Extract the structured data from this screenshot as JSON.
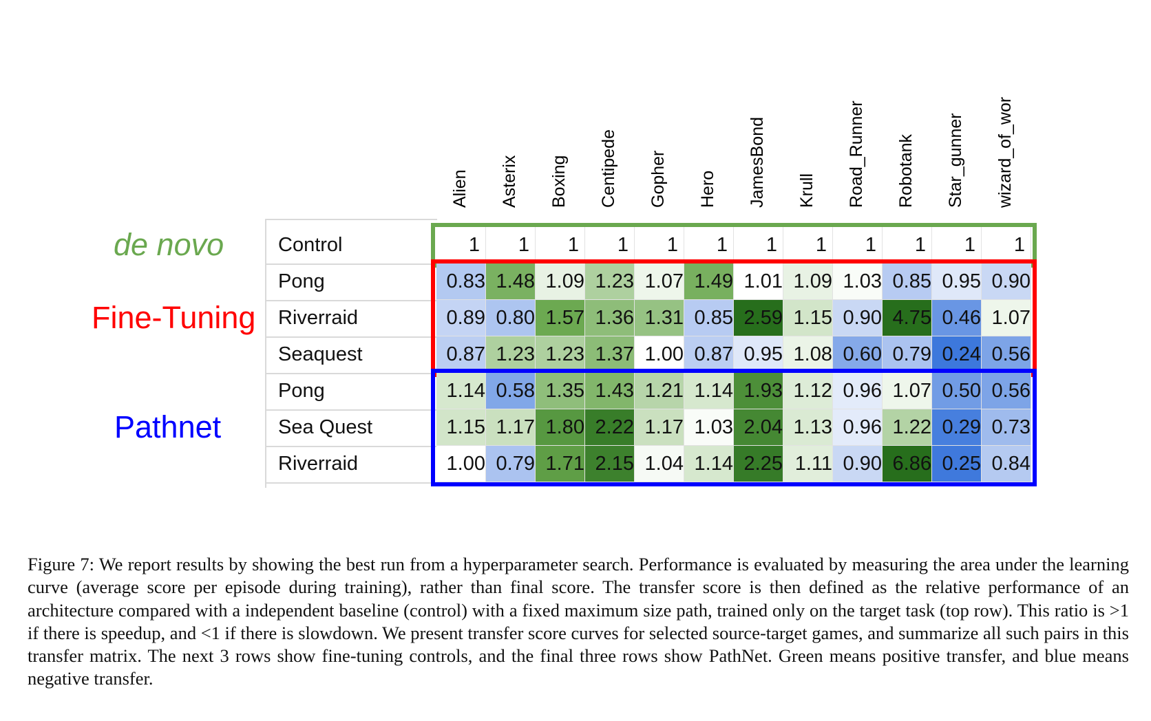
{
  "chart_data": {
    "type": "heatmap",
    "columns": [
      "Alien",
      "Asterix",
      "Boxing",
      "Centipede",
      "Gopher",
      "Hero",
      "JamesBond",
      "Krull",
      "Road_Runner",
      "Robotank",
      "Star_gunner",
      "wizard_of_wor"
    ],
    "groups": [
      {
        "name": "de novo",
        "color": "#6aa84f",
        "rows": [
          {
            "label": "Control",
            "values": [
              1,
              1,
              1,
              1,
              1,
              1,
              1,
              1,
              1,
              1,
              1,
              1
            ],
            "display": [
              "1",
              "1",
              "1",
              "1",
              "1",
              "1",
              "1",
              "1",
              "1",
              "1",
              "1",
              "1"
            ]
          }
        ]
      },
      {
        "name": "Fine-Tuning",
        "color": "#ff0000",
        "rows": [
          {
            "label": "Pong",
            "values": [
              0.83,
              1.48,
              1.09,
              1.23,
              1.07,
              1.49,
              1.01,
              1.09,
              1.03,
              0.85,
              0.95,
              0.9
            ],
            "display": [
              "0.83",
              "1.48",
              "1.09",
              "1.23",
              "1.07",
              "1.49",
              "1.01",
              "1.09",
              "1.03",
              "0.85",
              "0.95",
              "0.90"
            ]
          },
          {
            "label": "Riverraid",
            "values": [
              0.89,
              0.8,
              1.57,
              1.36,
              1.31,
              0.85,
              2.59,
              1.15,
              0.9,
              4.75,
              0.46,
              1.07
            ],
            "display": [
              "0.89",
              "0.80",
              "1.57",
              "1.36",
              "1.31",
              "0.85",
              "2.59",
              "1.15",
              "0.90",
              "4.75",
              "0.46",
              "1.07"
            ]
          },
          {
            "label": "Seaquest",
            "values": [
              0.87,
              1.23,
              1.23,
              1.37,
              1.0,
              0.87,
              0.95,
              1.08,
              0.6,
              0.79,
              0.24,
              0.56
            ],
            "display": [
              "0.87",
              "1.23",
              "1.23",
              "1.37",
              "1.00",
              "0.87",
              "0.95",
              "1.08",
              "0.60",
              "0.79",
              "0.24",
              "0.56"
            ]
          }
        ]
      },
      {
        "name": "Pathnet",
        "color": "#0000ff",
        "rows": [
          {
            "label": "Pong",
            "values": [
              1.14,
              0.58,
              1.35,
              1.43,
              1.21,
              1.14,
              1.93,
              1.12,
              0.96,
              1.07,
              0.5,
              0.56
            ],
            "display": [
              "1.14",
              "0.58",
              "1.35",
              "1.43",
              "1.21",
              "1.14",
              "1.93",
              "1.12",
              "0.96",
              "1.07",
              "0.50",
              "0.56"
            ]
          },
          {
            "label": "Sea Quest",
            "values": [
              1.15,
              1.17,
              1.8,
              2.22,
              1.17,
              1.03,
              2.04,
              1.13,
              0.96,
              1.22,
              0.29,
              0.73
            ],
            "display": [
              "1.15",
              "1.17",
              "1.80",
              "2.22",
              "1.17",
              "1.03",
              "2.04",
              "1.13",
              "0.96",
              "1.22",
              "0.29",
              "0.73"
            ]
          },
          {
            "label": "Riverraid",
            "values": [
              1.0,
              0.79,
              1.71,
              2.15,
              1.04,
              1.14,
              2.25,
              1.11,
              0.9,
              6.86,
              0.25,
              0.84
            ],
            "display": [
              "1.00",
              "0.79",
              "1.71",
              "2.15",
              "1.04",
              "1.14",
              "2.25",
              "1.11",
              "0.90",
              "6.86",
              "0.25",
              "0.84"
            ]
          }
        ]
      }
    ],
    "color_scale": {
      "positive": "green",
      "negative": "blue",
      "neutral_value": 1
    }
  },
  "caption": "Figure 7: We report results by showing the best run from a hyperparameter search. Performance is evaluated by measuring the area under the learning curve (average score per episode during training), rather than final score. The transfer score is then defined as the relative performance of an architecture compared with a independent baseline (control) with a fixed maximum size path, trained only on the target task (top row). This ratio is >1 if there is speedup, and <1 if there is slowdown. We present transfer score curves for selected source-target games, and summarize all such pairs in this transfer matrix. The next 3 rows show fine-tuning controls, and the final three rows show PathNet. Green means positive transfer, and blue means negative transfer."
}
